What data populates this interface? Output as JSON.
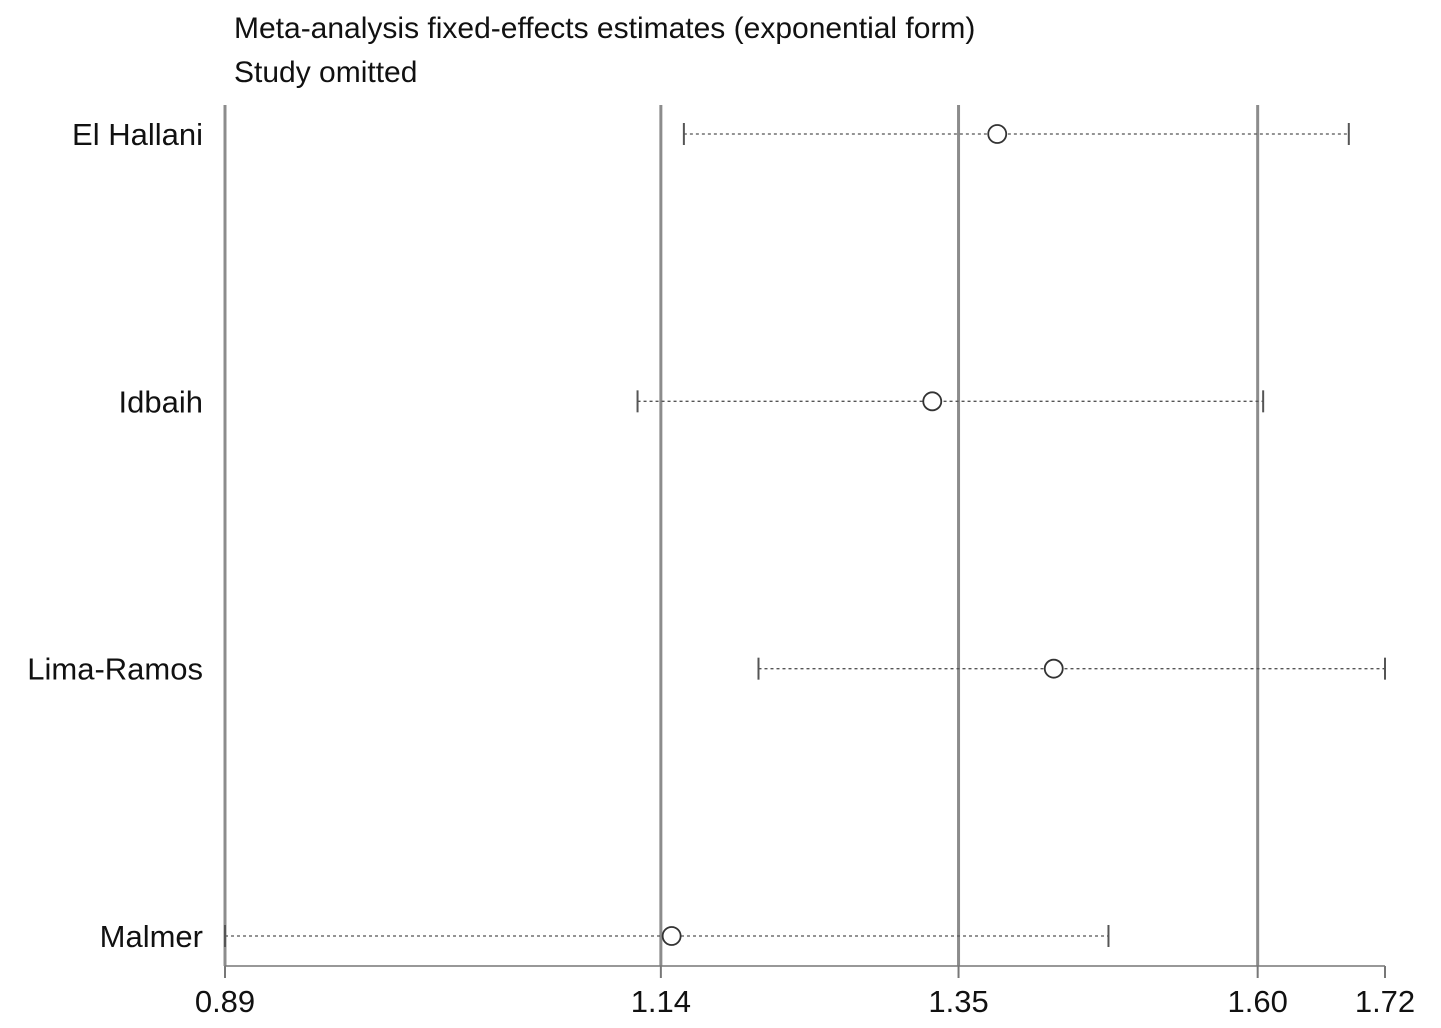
{
  "chart_data": {
    "type": "scatter",
    "title": "Meta-analysis fixed-effects estimates (exponential form)",
    "subtitle": "Study omitted",
    "studies": [
      {
        "name": "El Hallani",
        "estimate": 1.38,
        "lower": 1.155,
        "upper": 1.685
      },
      {
        "name": "Idbaih",
        "estimate": 1.33,
        "lower": 1.125,
        "upper": 1.605
      },
      {
        "name": "Lima-Ramos",
        "estimate": 1.425,
        "lower": 1.205,
        "upper": 1.72
      },
      {
        "name": "Malmer",
        "estimate": 1.147,
        "lower": 0.89,
        "upper": 1.47
      }
    ],
    "reference_lines": [
      1.14,
      1.35,
      1.6
    ],
    "xticks": [
      0.89,
      1.14,
      1.35,
      1.6,
      1.72
    ],
    "xtick_labels": [
      "0.89",
      "1.14",
      "1.35",
      "1.60",
      "1.72"
    ],
    "xlim": [
      0.89,
      1.72
    ],
    "scale": "log",
    "colors": {
      "reference_line": "#8c8c8c",
      "ci_line": "#555555",
      "marker": "#333333",
      "axis": "#777777"
    }
  }
}
